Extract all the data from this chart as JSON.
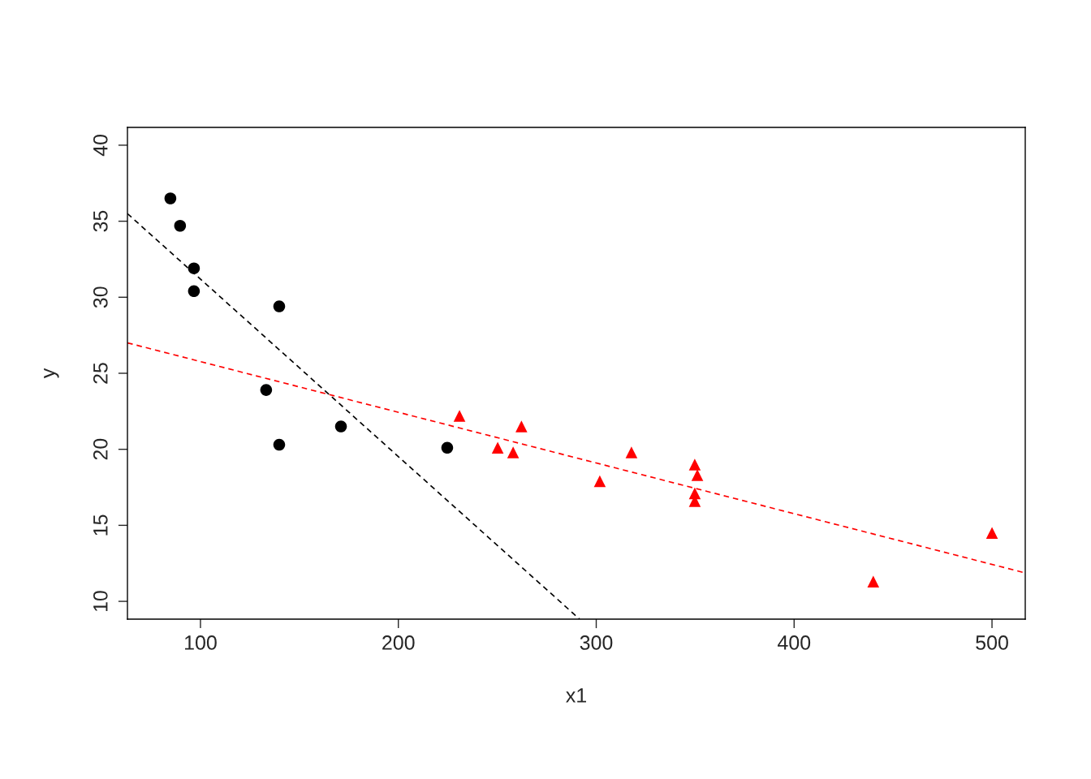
{
  "chart_data": {
    "type": "scatter",
    "xlabel": "x1",
    "ylabel": "y",
    "xlim": [
      63.1,
      516.8
    ],
    "ylim": [
      8.83,
      41.17
    ],
    "xticks": [
      100,
      200,
      300,
      400,
      500
    ],
    "yticks": [
      10,
      15,
      20,
      25,
      30,
      35,
      40
    ],
    "grid": false,
    "legend": false,
    "series": [
      {
        "color": "#000000",
        "marker": "circle",
        "x": [
          84.8,
          89.7,
          96.7,
          96.7,
          139.8,
          133.2,
          139.8,
          171.0,
          224.7
        ],
        "values": [
          36.5,
          34.7,
          31.9,
          30.4,
          29.4,
          23.9,
          20.3,
          21.5,
          20.1
        ]
      },
      {
        "color": "#ff0000",
        "marker": "triangle",
        "x": [
          230.9,
          250.2,
          258.0,
          262.2,
          301.8,
          317.8,
          349.8,
          351.1,
          349.8,
          349.8,
          440.0,
          500.0
        ],
        "values": [
          22.2,
          20.1,
          19.8,
          21.5,
          17.9,
          19.8,
          19.0,
          18.3,
          17.1,
          16.6,
          11.3,
          14.5
        ]
      },
      {
        "type": "line",
        "color": "#000000",
        "line_style": "dashed",
        "x": [
          63.1,
          291.6
        ],
        "values": [
          35.5,
          8.83
        ]
      },
      {
        "type": "line",
        "color": "#ff0000",
        "line_style": "dashed",
        "x": [
          63.1,
          516.8
        ],
        "values": [
          27.0,
          11.87
        ]
      }
    ]
  }
}
